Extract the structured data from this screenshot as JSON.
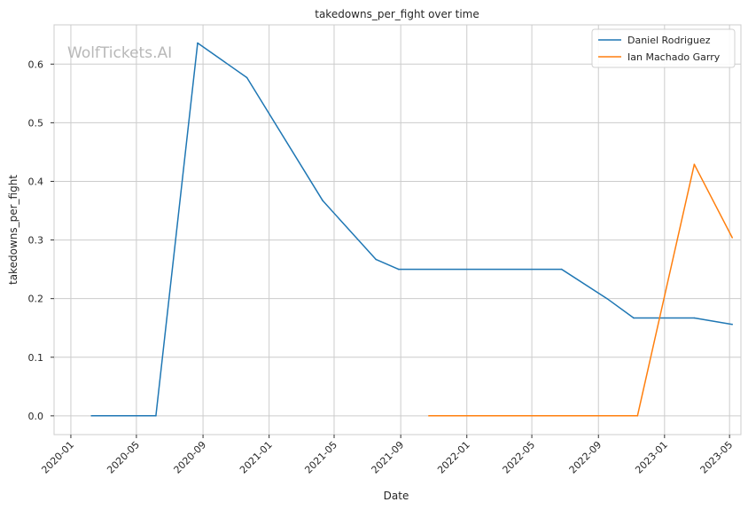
{
  "chart_data": {
    "type": "line",
    "title": "takedowns_per_fight over time",
    "xlabel": "Date",
    "ylabel": "takedowns_per_fight",
    "watermark": "WolfTickets.AI",
    "x_ticks": [
      "2020-01-01",
      "2020-05-01",
      "2020-09-01",
      "2021-01-01",
      "2021-05-01",
      "2021-09-01",
      "2022-01-01",
      "2022-05-01",
      "2022-09-01",
      "2023-01-01",
      "2023-05-01"
    ],
    "x_tick_labels": [
      "2020-01",
      "2020-05",
      "2020-09",
      "2021-01",
      "2021-05",
      "2021-09",
      "2022-01",
      "2022-05",
      "2022-09",
      "2023-01",
      "2023-05"
    ],
    "y_ticks": [
      0.0,
      0.1,
      0.2,
      0.3,
      0.4,
      0.5,
      0.6
    ],
    "y_tick_labels": [
      "0.0",
      "0.1",
      "0.2",
      "0.3",
      "0.4",
      "0.5",
      "0.6"
    ],
    "xlim": [
      "2019-12-01",
      "2023-05-22"
    ],
    "ylim": [
      -0.032,
      0.667
    ],
    "grid": true,
    "legend_position": "top-right",
    "series": [
      {
        "name": "Daniel Rodriguez",
        "color": "#1f77b4",
        "points": [
          {
            "x": "2020-02-08",
            "y": 0.0
          },
          {
            "x": "2020-06-06",
            "y": 0.0
          },
          {
            "x": "2020-08-22",
            "y": 0.636
          },
          {
            "x": "2020-11-21",
            "y": 0.577
          },
          {
            "x": "2021-04-10",
            "y": 0.367
          },
          {
            "x": "2021-07-17",
            "y": 0.267
          },
          {
            "x": "2021-08-28",
            "y": 0.25
          },
          {
            "x": "2022-06-25",
            "y": 0.25
          },
          {
            "x": "2022-09-17",
            "y": 0.2
          },
          {
            "x": "2022-11-05",
            "y": 0.167
          },
          {
            "x": "2023-02-25",
            "y": 0.167
          },
          {
            "x": "2023-05-06",
            "y": 0.156
          }
        ]
      },
      {
        "name": "Ian Machado Garry",
        "color": "#ff7f0e",
        "points": [
          {
            "x": "2021-10-23",
            "y": 0.0
          },
          {
            "x": "2022-11-12",
            "y": 0.0
          },
          {
            "x": "2023-02-25",
            "y": 0.429
          },
          {
            "x": "2023-05-06",
            "y": 0.304
          }
        ]
      }
    ]
  }
}
